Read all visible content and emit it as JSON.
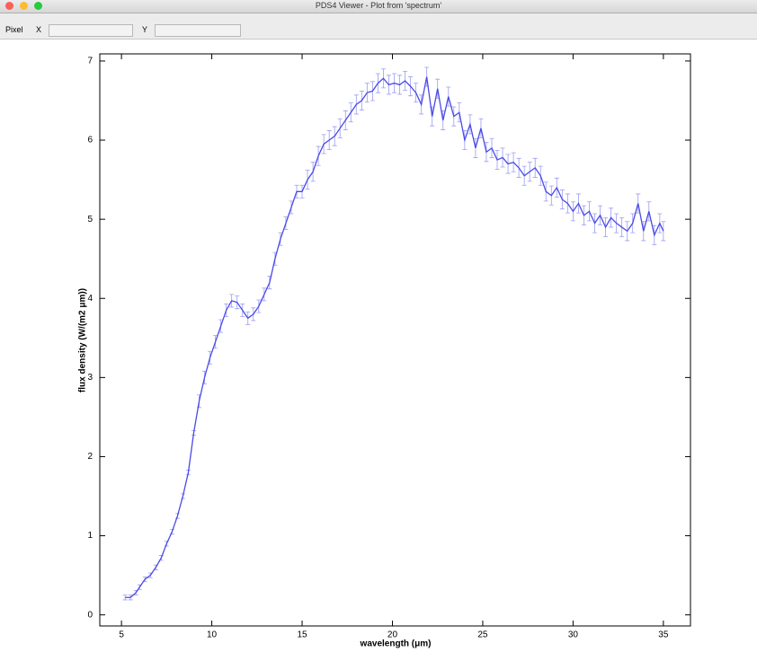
{
  "window": {
    "title": "PDS4 Viewer - Plot from 'spectrum'",
    "toolbar": {
      "label": "Pixel",
      "x_label": "X",
      "y_label": "Y"
    }
  },
  "chart_data": {
    "type": "line",
    "x_label": "wavelength (μm)",
    "y_label": "flux density (W/(m2 μm))",
    "color": "#4a4ae8",
    "x": [
      5.2,
      5.5,
      5.8,
      6.0,
      6.3,
      6.6,
      6.9,
      7.2,
      7.5,
      7.8,
      8.1,
      8.4,
      8.7,
      9.0,
      9.3,
      9.6,
      9.9,
      10.2,
      10.5,
      10.8,
      11.1,
      11.4,
      11.7,
      12.0,
      12.3,
      12.6,
      12.9,
      13.2,
      13.5,
      13.8,
      14.1,
      14.4,
      14.7,
      15.0,
      15.3,
      15.6,
      15.9,
      16.2,
      16.5,
      16.8,
      17.1,
      17.4,
      17.7,
      18.0,
      18.3,
      18.6,
      18.9,
      19.2,
      19.5,
      19.8,
      20.1,
      20.4,
      20.7,
      21.0,
      21.3,
      21.6,
      21.9,
      22.2,
      22.5,
      22.8,
      23.1,
      23.4,
      23.7,
      24.0,
      24.3,
      24.6,
      24.9,
      25.2,
      25.5,
      25.8,
      26.1,
      26.4,
      26.7,
      27.0,
      27.3,
      27.6,
      27.9,
      28.2,
      28.5,
      28.8,
      29.1,
      29.4,
      29.7,
      30.0,
      30.3,
      30.6,
      30.9,
      31.2,
      31.5,
      31.8,
      32.1,
      32.4,
      32.7,
      33.0,
      33.3,
      33.6,
      33.9,
      34.2,
      34.5,
      34.8,
      35.0
    ],
    "values": [
      0.22,
      0.22,
      0.28,
      0.35,
      0.45,
      0.5,
      0.6,
      0.72,
      0.9,
      1.05,
      1.25,
      1.5,
      1.8,
      2.3,
      2.7,
      3.0,
      3.25,
      3.45,
      3.65,
      3.85,
      3.97,
      3.95,
      3.85,
      3.75,
      3.8,
      3.9,
      4.05,
      4.2,
      4.5,
      4.75,
      4.95,
      5.15,
      5.35,
      5.35,
      5.5,
      5.6,
      5.8,
      5.95,
      6.0,
      6.05,
      6.15,
      6.25,
      6.35,
      6.45,
      6.5,
      6.6,
      6.62,
      6.72,
      6.78,
      6.7,
      6.72,
      6.7,
      6.75,
      6.68,
      6.6,
      6.45,
      6.8,
      6.3,
      6.65,
      6.25,
      6.55,
      6.3,
      6.35,
      6.0,
      6.2,
      5.9,
      6.15,
      5.85,
      5.9,
      5.75,
      5.78,
      5.7,
      5.72,
      5.65,
      5.55,
      5.6,
      5.65,
      5.55,
      5.35,
      5.3,
      5.4,
      5.25,
      5.2,
      5.1,
      5.2,
      5.05,
      5.1,
      4.95,
      5.05,
      4.9,
      5.02,
      4.95,
      4.9,
      4.85,
      4.95,
      5.2,
      4.85,
      5.1,
      4.8,
      4.95,
      4.85
    ],
    "errors": [
      0.03,
      0.03,
      0.03,
      0.03,
      0.03,
      0.03,
      0.03,
      0.03,
      0.03,
      0.03,
      0.03,
      0.03,
      0.03,
      0.03,
      0.08,
      0.08,
      0.08,
      0.08,
      0.08,
      0.08,
      0.08,
      0.08,
      0.08,
      0.08,
      0.08,
      0.08,
      0.08,
      0.08,
      0.08,
      0.08,
      0.08,
      0.08,
      0.08,
      0.08,
      0.12,
      0.12,
      0.12,
      0.12,
      0.12,
      0.12,
      0.12,
      0.12,
      0.12,
      0.12,
      0.12,
      0.12,
      0.12,
      0.12,
      0.12,
      0.12,
      0.12,
      0.12,
      0.12,
      0.12,
      0.12,
      0.12,
      0.12,
      0.12,
      0.12,
      0.12,
      0.12,
      0.12,
      0.12,
      0.12,
      0.12,
      0.12,
      0.12,
      0.12,
      0.12,
      0.12,
      0.12,
      0.12,
      0.12,
      0.12,
      0.12,
      0.12,
      0.12,
      0.12,
      0.12,
      0.12,
      0.12,
      0.12,
      0.12,
      0.12,
      0.12,
      0.12,
      0.12,
      0.12,
      0.12,
      0.12,
      0.12,
      0.12,
      0.12,
      0.12,
      0.12,
      0.12,
      0.12,
      0.12,
      0.12,
      0.12,
      0.12
    ],
    "xlim": [
      3.8,
      36.5
    ],
    "ylim": [
      -0.14,
      7.09
    ],
    "xticks": [
      5,
      10,
      15,
      20,
      25,
      30,
      35
    ],
    "yticks": [
      0,
      1,
      2,
      3,
      4,
      5,
      6,
      7
    ]
  }
}
